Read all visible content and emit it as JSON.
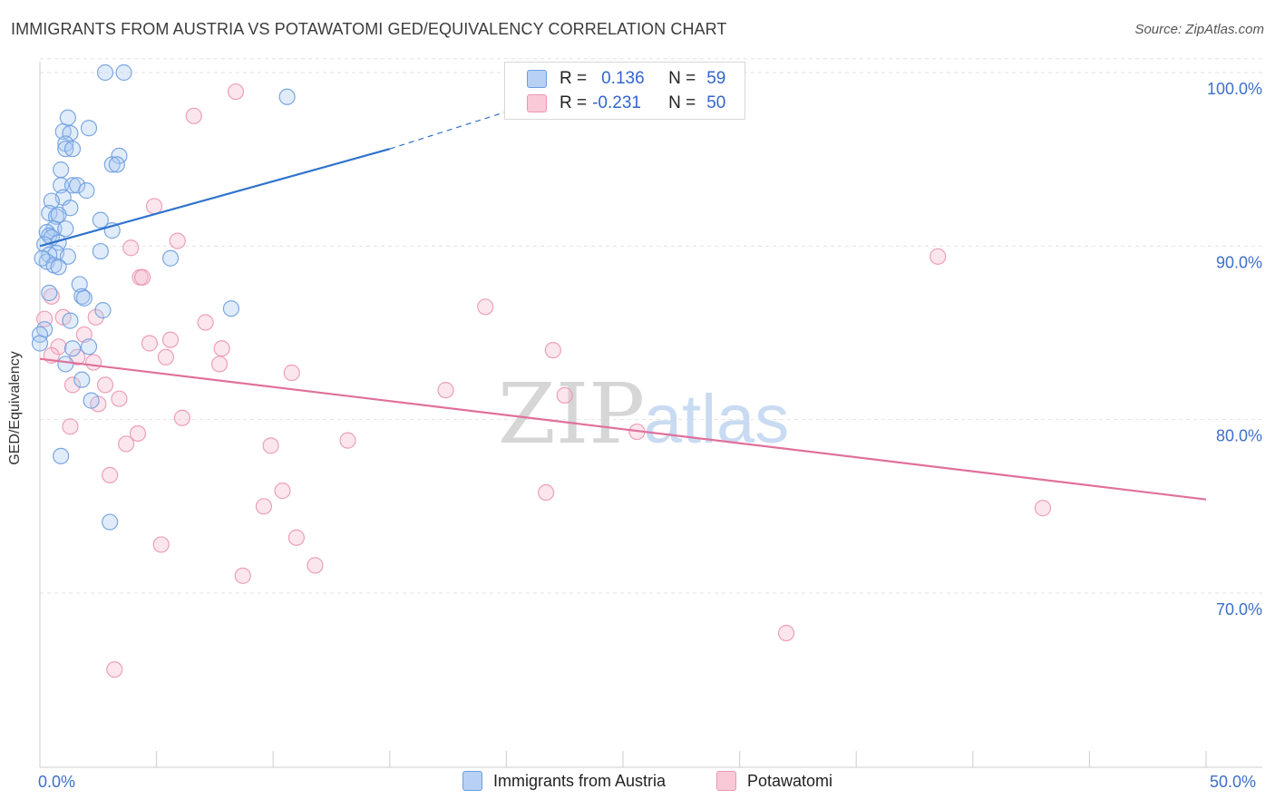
{
  "title": "IMMIGRANTS FROM AUSTRIA VS POTAWATOMI GED/EQUIVALENCY CORRELATION CHART",
  "source": "Source: ZipAtlas.com",
  "watermark": {
    "zip": "ZIP",
    "atlas": "atlas"
  },
  "legend": {
    "r_label": "R =",
    "n_label": "N =",
    "austria": {
      "r": "0.136",
      "n": "59"
    },
    "potawatomi": {
      "r": "-0.231",
      "n": "50"
    }
  },
  "bottom_legend": {
    "austria": "Immigrants from Austria",
    "potawatomi": "Potawatomi"
  },
  "chart_data": {
    "type": "scatter",
    "title": "IMMIGRANTS FROM AUSTRIA VS POTAWATOMI GED/EQUIVALENCY CORRELATION CHART",
    "xlabel": "",
    "ylabel": "GED/Equivalency",
    "xlim": [
      0,
      50
    ],
    "ylim": [
      60,
      101
    ],
    "x_tick_labels": [
      "0.0%",
      "50.0%"
    ],
    "y_ticks": [
      70,
      80,
      90,
      100
    ],
    "y_tick_labels": [
      "70.0%",
      "80.0%",
      "90.0%",
      "100.0%"
    ],
    "colors": {
      "austria": "#6e9fe0",
      "austria_line": "#2f72cc",
      "potawatomi": "#eb96b4",
      "potawatomi_line": "#e0709a",
      "tick_text": "#3d6fc9"
    },
    "series": [
      {
        "name": "Immigrants from Austria",
        "color": "#6e9fe0",
        "r": 0.136,
        "n": 59,
        "trend": {
          "x0": 0,
          "y0": 90.0,
          "x1": 15,
          "y1": 95.6,
          "dash_x1": 22,
          "dash_y1": 98.6
        },
        "points": [
          [
            2.8,
            100.0
          ],
          [
            3.6,
            100.0
          ],
          [
            10.6,
            98.6
          ],
          [
            1.2,
            97.4
          ],
          [
            1.0,
            96.6
          ],
          [
            1.3,
            96.5
          ],
          [
            2.1,
            96.8
          ],
          [
            1.1,
            95.9
          ],
          [
            1.1,
            95.6
          ],
          [
            1.4,
            95.6
          ],
          [
            3.4,
            95.2
          ],
          [
            3.1,
            94.7
          ],
          [
            3.3,
            94.7
          ],
          [
            0.9,
            94.4
          ],
          [
            0.9,
            93.5
          ],
          [
            1.4,
            93.5
          ],
          [
            1.6,
            93.5
          ],
          [
            2.0,
            93.2
          ],
          [
            1.0,
            92.8
          ],
          [
            0.5,
            92.6
          ],
          [
            1.3,
            92.2
          ],
          [
            0.4,
            91.9
          ],
          [
            0.7,
            91.7
          ],
          [
            0.8,
            91.8
          ],
          [
            2.6,
            91.5
          ],
          [
            0.6,
            91.0
          ],
          [
            1.1,
            91.0
          ],
          [
            3.1,
            90.9
          ],
          [
            0.3,
            90.8
          ],
          [
            0.4,
            90.6
          ],
          [
            0.5,
            90.5
          ],
          [
            0.8,
            90.2
          ],
          [
            0.2,
            90.1
          ],
          [
            2.6,
            89.7
          ],
          [
            0.7,
            89.6
          ],
          [
            0.4,
            89.5
          ],
          [
            1.2,
            89.4
          ],
          [
            5.6,
            89.3
          ],
          [
            0.3,
            89.1
          ],
          [
            0.1,
            89.3
          ],
          [
            0.6,
            88.9
          ],
          [
            0.8,
            88.8
          ],
          [
            1.7,
            87.8
          ],
          [
            0.4,
            87.3
          ],
          [
            1.8,
            87.1
          ],
          [
            1.9,
            87.0
          ],
          [
            8.2,
            86.4
          ],
          [
            2.7,
            86.3
          ],
          [
            1.3,
            85.7
          ],
          [
            0.2,
            85.2
          ],
          [
            1.4,
            84.1
          ],
          [
            2.1,
            84.2
          ],
          [
            1.1,
            83.2
          ],
          [
            1.8,
            82.3
          ],
          [
            2.2,
            81.1
          ],
          [
            0.9,
            77.9
          ],
          [
            3.0,
            74.1
          ],
          [
            0.0,
            84.9
          ],
          [
            0.0,
            84.4
          ]
        ]
      },
      {
        "name": "Potawatomi",
        "color": "#eb96b4",
        "r": -0.231,
        "n": 50,
        "trend": {
          "x0": 0,
          "y0": 83.5,
          "x1": 50,
          "y1": 75.4
        },
        "points": [
          [
            8.4,
            98.9
          ],
          [
            6.6,
            97.5
          ],
          [
            4.9,
            92.3
          ],
          [
            38.5,
            89.4
          ],
          [
            5.9,
            90.3
          ],
          [
            3.9,
            89.9
          ],
          [
            4.3,
            88.2
          ],
          [
            4.4,
            88.2
          ],
          [
            0.5,
            87.1
          ],
          [
            19.1,
            86.5
          ],
          [
            0.2,
            85.8
          ],
          [
            1.0,
            85.9
          ],
          [
            2.4,
            85.9
          ],
          [
            7.1,
            85.6
          ],
          [
            1.9,
            84.9
          ],
          [
            5.6,
            84.6
          ],
          [
            4.7,
            84.4
          ],
          [
            0.8,
            84.2
          ],
          [
            7.8,
            84.1
          ],
          [
            22.0,
            84.0
          ],
          [
            0.5,
            83.7
          ],
          [
            1.6,
            83.6
          ],
          [
            5.4,
            83.6
          ],
          [
            2.3,
            83.3
          ],
          [
            7.7,
            83.2
          ],
          [
            10.8,
            82.7
          ],
          [
            2.8,
            82.0
          ],
          [
            1.4,
            82.0
          ],
          [
            17.4,
            81.7
          ],
          [
            22.5,
            81.4
          ],
          [
            3.4,
            81.2
          ],
          [
            2.5,
            80.9
          ],
          [
            6.1,
            80.1
          ],
          [
            1.3,
            79.6
          ],
          [
            25.6,
            79.3
          ],
          [
            4.2,
            79.2
          ],
          [
            13.2,
            78.8
          ],
          [
            3.7,
            78.6
          ],
          [
            9.9,
            78.5
          ],
          [
            3.0,
            76.8
          ],
          [
            10.4,
            75.9
          ],
          [
            21.7,
            75.8
          ],
          [
            9.6,
            75.0
          ],
          [
            43.0,
            74.9
          ],
          [
            11.0,
            73.2
          ],
          [
            5.2,
            72.8
          ],
          [
            11.8,
            71.6
          ],
          [
            8.7,
            71.0
          ],
          [
            32.0,
            67.7
          ],
          [
            3.2,
            65.6
          ]
        ]
      }
    ]
  }
}
